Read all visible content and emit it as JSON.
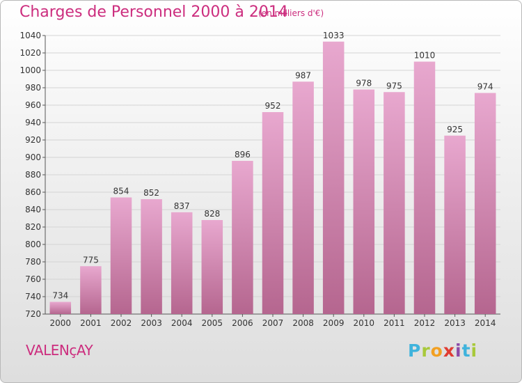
{
  "header": {
    "title": "Charges de Personnel 2000 à 2014",
    "subtitle": "(en milliers d'€)"
  },
  "footer": {
    "place": "VALENçAY",
    "logo_letters": [
      "P",
      "r",
      "o",
      "x",
      "i",
      "t",
      "i"
    ],
    "logo_colors": [
      "#3fb3dc",
      "#a8c93a",
      "#f2a022",
      "#e03c32",
      "#8c4aa8",
      "#3fb3dc",
      "#a8c93a"
    ]
  },
  "colors": {
    "bar_top": "#e8a8cf",
    "bar_bottom": "#b5668f",
    "text": "#cc2d7e"
  },
  "chart_data": {
    "type": "bar",
    "title": "Charges de Personnel 2000 à 2014",
    "subtitle": "(en milliers d'€)",
    "categories": [
      "2000",
      "2001",
      "2002",
      "2003",
      "2004",
      "2005",
      "2006",
      "2007",
      "2008",
      "2009",
      "2010",
      "2011",
      "2012",
      "2013",
      "2014"
    ],
    "values": [
      734,
      775,
      854,
      852,
      837,
      828,
      896,
      952,
      987,
      1033,
      978,
      975,
      1010,
      925,
      974
    ],
    "ylim": [
      720,
      1040
    ],
    "yticks": [
      720,
      740,
      760,
      780,
      800,
      820,
      840,
      860,
      880,
      900,
      920,
      940,
      960,
      980,
      1000,
      1020,
      1040
    ],
    "grid": true,
    "legend": "none"
  }
}
